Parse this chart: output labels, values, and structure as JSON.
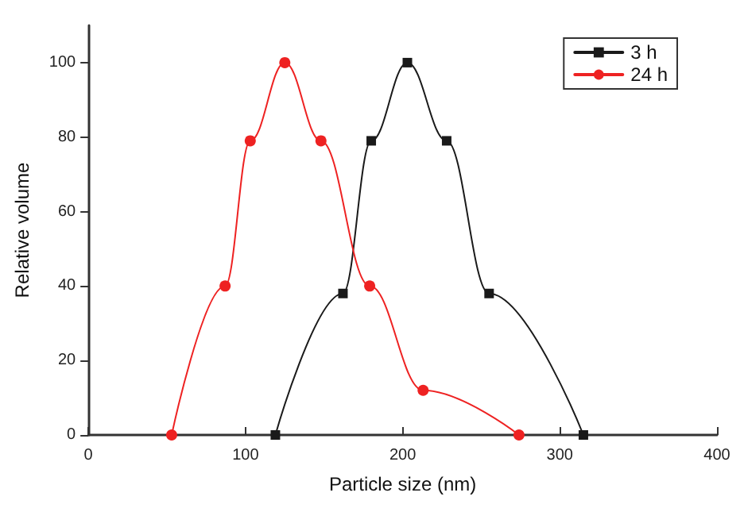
{
  "chart_data": {
    "type": "line",
    "xlabel": "Particle size (nm)",
    "ylabel": "Relative volume",
    "xlim": [
      0,
      400
    ],
    "xticks": [
      0,
      100,
      200,
      300,
      400
    ],
    "ylim": [
      0,
      110
    ],
    "yticks": [
      0,
      20,
      40,
      60,
      80,
      100
    ],
    "grid": false,
    "legend": "top right",
    "line_style": "solid",
    "series": [
      {
        "name": "3 h",
        "color": "#1a1a1a",
        "marker": "square",
        "x": [
          119,
          162,
          180,
          203,
          228,
          255,
          315
        ],
        "values": [
          0,
          38,
          79,
          100,
          79,
          38,
          0
        ]
      },
      {
        "name": "24 h",
        "color": "#ee2222",
        "marker": "circle",
        "x": [
          53,
          87,
          103,
          125,
          148,
          179,
          213,
          274
        ],
        "values": [
          0,
          40,
          79,
          100,
          79,
          40,
          12,
          0
        ]
      }
    ]
  }
}
